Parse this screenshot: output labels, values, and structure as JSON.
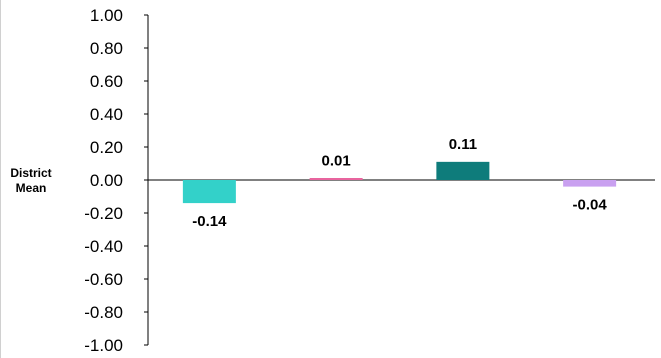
{
  "chart_data": {
    "type": "bar",
    "title": "",
    "xlabel": "",
    "ylabel": [
      "District",
      "Mean"
    ],
    "ylim": [
      -1.0,
      1.0
    ],
    "yticks": [
      "1.00",
      "0.80",
      "0.60",
      "0.40",
      "0.20",
      "0.00",
      "-0.20",
      "-0.40",
      "-0.60",
      "-0.80",
      "-1.00"
    ],
    "ytick_values": [
      1.0,
      0.8,
      0.6,
      0.4,
      0.2,
      0.0,
      -0.2,
      -0.4,
      -0.6,
      -0.8,
      -1.0
    ],
    "grid": false,
    "bars": [
      {
        "value": -0.14,
        "label": "-0.14",
        "color": "#33D1C9"
      },
      {
        "value": 0.01,
        "label": "0.01",
        "color": "#E8649E"
      },
      {
        "value": 0.11,
        "label": "0.11",
        "color": "#0E7C7B"
      },
      {
        "value": -0.04,
        "label": "-0.04",
        "color": "#C9A0F0"
      }
    ]
  }
}
